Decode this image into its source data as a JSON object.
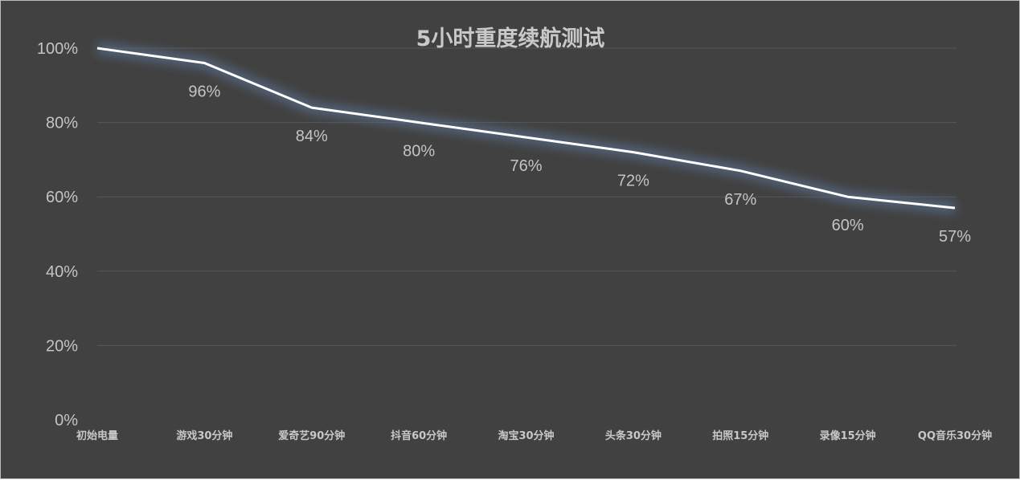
{
  "chart_data": {
    "type": "line",
    "title": "5小时重度续航测试",
    "xlabel": "",
    "ylabel": "",
    "categories": [
      "初始电量",
      "游戏30分钟",
      "爱奇艺90分钟",
      "抖音60分钟",
      "淘宝30分钟",
      "头条30分钟",
      "拍照15分钟",
      "录像15分钟",
      "QQ音乐30分钟"
    ],
    "series": [
      {
        "name": "电量",
        "values": [
          100,
          96,
          84,
          80,
          76,
          72,
          67,
          60,
          57
        ],
        "data_labels": [
          "",
          "96%",
          "84%",
          "80%",
          "76%",
          "72%",
          "67%",
          "60%",
          "57%"
        ]
      }
    ],
    "ylim": [
      0,
      100
    ],
    "yticks": [
      "0%",
      "20%",
      "40%",
      "60%",
      "80%",
      "100%"
    ],
    "grid": true,
    "legend": "none"
  },
  "colors": {
    "background": "#414141",
    "line": "#ffffff",
    "glow": "#5a7090",
    "text": "#c4c4c4",
    "grid": "#575757"
  }
}
